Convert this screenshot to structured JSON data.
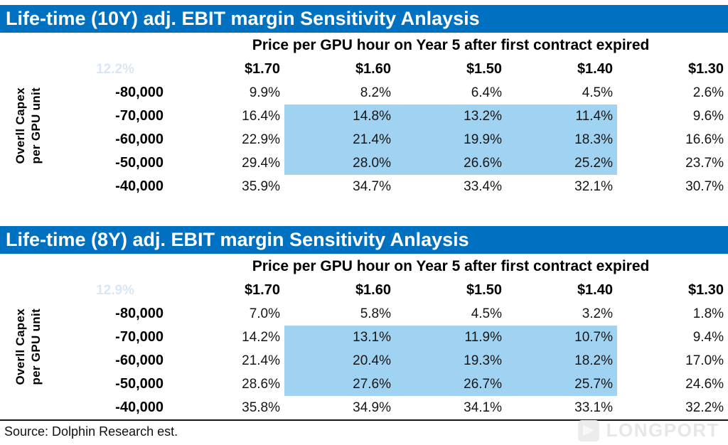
{
  "page": {
    "source_note": "Source: Dolphin Research est.",
    "watermark": "LONGPORT"
  },
  "colors": {
    "title_bg": "#0070C0",
    "highlight": "#A0D2F2",
    "faint_text": "#D9E7F5"
  },
  "chart_data": [
    {
      "type": "table",
      "title": "Life-time (10Y) adj. EBIT margin Sensitivity Anlaysis",
      "subtitle": "Price per GPU hour on Year 5 after first contract expired",
      "axis_label": [
        "Overll Capex",
        "per GPU unit"
      ],
      "corner_value": "12.2%",
      "columns": [
        "$1.70",
        "$1.60",
        "$1.50",
        "$1.40",
        "$1.30"
      ],
      "rows": [
        {
          "label": "-80,000",
          "values": [
            "9.9%",
            "8.2%",
            "6.4%",
            "4.5%",
            "2.6%"
          ]
        },
        {
          "label": "-70,000",
          "values": [
            "16.4%",
            "14.8%",
            "13.2%",
            "11.4%",
            "9.6%"
          ]
        },
        {
          "label": "-60,000",
          "values": [
            "22.9%",
            "21.4%",
            "19.9%",
            "18.3%",
            "16.6%"
          ]
        },
        {
          "label": "-50,000",
          "values": [
            "29.4%",
            "28.0%",
            "26.6%",
            "25.2%",
            "23.7%"
          ]
        },
        {
          "label": "-40,000",
          "values": [
            "35.9%",
            "34.7%",
            "33.4%",
            "32.1%",
            "30.7%"
          ]
        }
      ],
      "highlight": {
        "rows": [
          1,
          2,
          3
        ],
        "cols": [
          1,
          2,
          3
        ]
      }
    },
    {
      "type": "table",
      "title": "Life-time (8Y) adj. EBIT margin Sensitivity Anlaysis",
      "subtitle": "Price per GPU hour on Year 5 after first contract expired",
      "axis_label": [
        "Overll Capex",
        "per GPU unit"
      ],
      "corner_value": "12.9%",
      "columns": [
        "$1.70",
        "$1.60",
        "$1.50",
        "$1.40",
        "$1.30"
      ],
      "rows": [
        {
          "label": "-80,000",
          "values": [
            "7.0%",
            "5.8%",
            "4.5%",
            "3.2%",
            "1.8%"
          ]
        },
        {
          "label": "-70,000",
          "values": [
            "14.2%",
            "13.1%",
            "11.9%",
            "10.7%",
            "9.4%"
          ]
        },
        {
          "label": "-60,000",
          "values": [
            "21.4%",
            "20.4%",
            "19.3%",
            "18.2%",
            "17.0%"
          ]
        },
        {
          "label": "-50,000",
          "values": [
            "28.6%",
            "27.6%",
            "26.7%",
            "25.7%",
            "24.6%"
          ]
        },
        {
          "label": "-40,000",
          "values": [
            "35.8%",
            "34.9%",
            "34.1%",
            "33.1%",
            "32.2%"
          ]
        }
      ],
      "highlight": {
        "rows": [
          1,
          2,
          3
        ],
        "cols": [
          1,
          2,
          3
        ]
      }
    }
  ]
}
